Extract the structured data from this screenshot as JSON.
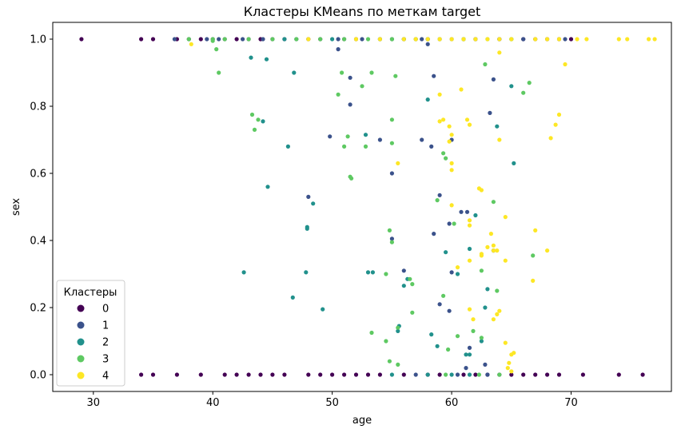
{
  "chart_data": {
    "type": "scatter",
    "title": "Кластеры KMeans по меткам target",
    "xlabel": "age",
    "ylabel": "sex",
    "xlim": [
      26.6,
      78.4
    ],
    "ylim": [
      -0.05,
      1.05
    ],
    "xticks": [
      30,
      40,
      50,
      60,
      70
    ],
    "yticks": [
      0.0,
      0.2,
      0.4,
      0.6,
      0.8,
      1.0
    ],
    "grid": false,
    "legend": {
      "title": "Кластеры",
      "placement": "lower-left",
      "entries": [
        "0",
        "1",
        "2",
        "3",
        "4"
      ]
    },
    "colors": {
      "0": "#440154",
      "1": "#3b528b",
      "2": "#21918c",
      "3": "#5ec962",
      "4": "#fde725"
    },
    "series": [
      {
        "name": "0",
        "points": [
          [
            29,
            1
          ],
          [
            34,
            1
          ],
          [
            35,
            1
          ],
          [
            37,
            1
          ],
          [
            38,
            1
          ],
          [
            39,
            1
          ],
          [
            40,
            1
          ],
          [
            41,
            1
          ],
          [
            42,
            1
          ],
          [
            43,
            1
          ],
          [
            44,
            1
          ],
          [
            45,
            1
          ],
          [
            46,
            1
          ],
          [
            48,
            1
          ],
          [
            49,
            1
          ],
          [
            51,
            1
          ],
          [
            52,
            1
          ],
          [
            54,
            1
          ],
          [
            56,
            1
          ],
          [
            57,
            1
          ],
          [
            58,
            1
          ],
          [
            59,
            1
          ],
          [
            61,
            1
          ],
          [
            62,
            1
          ],
          [
            64,
            1
          ],
          [
            66,
            1
          ],
          [
            67,
            1
          ],
          [
            68,
            1
          ],
          [
            69,
            1
          ],
          [
            70,
            1
          ],
          [
            34,
            0
          ],
          [
            35,
            0
          ],
          [
            37,
            0
          ],
          [
            39,
            0
          ],
          [
            41,
            0
          ],
          [
            42,
            0
          ],
          [
            43,
            0
          ],
          [
            44,
            0
          ],
          [
            45,
            0
          ],
          [
            46,
            0
          ],
          [
            48,
            0
          ],
          [
            49,
            0
          ],
          [
            50,
            0
          ],
          [
            51,
            0
          ],
          [
            52,
            0
          ],
          [
            53,
            0
          ],
          [
            54,
            0
          ],
          [
            56,
            0
          ],
          [
            58,
            0
          ],
          [
            59,
            0
          ],
          [
            61,
            0
          ],
          [
            62,
            0
          ],
          [
            63,
            0
          ],
          [
            64,
            0
          ],
          [
            65,
            0
          ],
          [
            66,
            0
          ],
          [
            67,
            0
          ],
          [
            68,
            0
          ],
          [
            69,
            0
          ],
          [
            71,
            0
          ],
          [
            74,
            0
          ],
          [
            76,
            0
          ]
        ]
      },
      {
        "name": "1",
        "points": [
          [
            36.8,
            1
          ],
          [
            39.5,
            1
          ],
          [
            40.5,
            1
          ],
          [
            42.5,
            1
          ],
          [
            44.2,
            1
          ],
          [
            47,
            1
          ],
          [
            50.5,
            1
          ],
          [
            52.5,
            1
          ],
          [
            55,
            1
          ],
          [
            57.5,
            1
          ],
          [
            60,
            1
          ],
          [
            62,
            1
          ],
          [
            64,
            1
          ],
          [
            66,
            1
          ],
          [
            69.5,
            1
          ],
          [
            50.5,
            0.97
          ],
          [
            58,
            0.985
          ],
          [
            51.5,
            0.885
          ],
          [
            58.5,
            0.89
          ],
          [
            63.5,
            0.88
          ],
          [
            51.5,
            0.805
          ],
          [
            63.2,
            0.78
          ],
          [
            49.8,
            0.71
          ],
          [
            54,
            0.7
          ],
          [
            57.5,
            0.7
          ],
          [
            58.3,
            0.68
          ],
          [
            60,
            0.7
          ],
          [
            55,
            0.6
          ],
          [
            48,
            0.53
          ],
          [
            59,
            0.535
          ],
          [
            60.8,
            0.485
          ],
          [
            61.3,
            0.485
          ],
          [
            59.8,
            0.45
          ],
          [
            60,
            0.305
          ],
          [
            58.5,
            0.42
          ],
          [
            55,
            0.405
          ],
          [
            56,
            0.31
          ],
          [
            63.5,
            0.37
          ],
          [
            62.8,
            0.03
          ],
          [
            59,
            0.21
          ],
          [
            59.8,
            0.19
          ],
          [
            61.5,
            0.08
          ],
          [
            61.2,
            0.02
          ],
          [
            57,
            0.0
          ],
          [
            60.5,
            0.0
          ],
          [
            63,
            0.0
          ]
        ]
      },
      {
        "name": "2",
        "points": [
          [
            43.2,
            0.945
          ],
          [
            44.5,
            0.94
          ],
          [
            46.8,
            0.9
          ],
          [
            44.2,
            0.755
          ],
          [
            46.3,
            0.68
          ],
          [
            52.8,
            0.715
          ],
          [
            44.6,
            0.56
          ],
          [
            48.4,
            0.51
          ],
          [
            47.9,
            0.44
          ],
          [
            47.9,
            0.435
          ],
          [
            42.6,
            0.305
          ],
          [
            47.8,
            0.305
          ],
          [
            53,
            0.305
          ],
          [
            53.4,
            0.305
          ],
          [
            46.7,
            0.23
          ],
          [
            49.2,
            0.195
          ],
          [
            55.6,
            0.145
          ],
          [
            55.5,
            0.13
          ],
          [
            56.3,
            0.285
          ],
          [
            56,
            0.265
          ],
          [
            58.3,
            0.12
          ],
          [
            58.8,
            0.085
          ],
          [
            58,
            0.82
          ],
          [
            61.5,
            0.375
          ],
          [
            60.5,
            0.3
          ],
          [
            59.5,
            0.365
          ],
          [
            62,
            0.475
          ],
          [
            63,
            0.255
          ],
          [
            63.8,
            0.74
          ],
          [
            65,
            0.86
          ],
          [
            65.2,
            0.63
          ],
          [
            62.8,
            0.2
          ],
          [
            61.5,
            0.06
          ],
          [
            62.5,
            0.1
          ],
          [
            61.2,
            0.06
          ],
          [
            55,
            0.0
          ],
          [
            58,
            0.0
          ],
          [
            60,
            0.0
          ],
          [
            61.5,
            0.0
          ],
          [
            46,
            1
          ],
          [
            50,
            1
          ],
          [
            54,
            1
          ],
          [
            56,
            1
          ],
          [
            58,
            1
          ],
          [
            61,
            1
          ],
          [
            65,
            1
          ]
        ]
      },
      {
        "name": "3",
        "points": [
          [
            38,
            1
          ],
          [
            40,
            1
          ],
          [
            41,
            1
          ],
          [
            43,
            1
          ],
          [
            45,
            1
          ],
          [
            47,
            1
          ],
          [
            49,
            1
          ],
          [
            51,
            1
          ],
          [
            53,
            1
          ],
          [
            55,
            1
          ],
          [
            57,
            1
          ],
          [
            59,
            1
          ],
          [
            61,
            1
          ],
          [
            63,
            1
          ],
          [
            65,
            1
          ],
          [
            40,
            0.995
          ],
          [
            40.3,
            0.97
          ],
          [
            40.5,
            0.9
          ],
          [
            50.8,
            0.9
          ],
          [
            53.3,
            0.9
          ],
          [
            55.3,
            0.89
          ],
          [
            52.5,
            0.86
          ],
          [
            50.5,
            0.835
          ],
          [
            43.3,
            0.775
          ],
          [
            43.8,
            0.76
          ],
          [
            43.5,
            0.73
          ],
          [
            51.3,
            0.71
          ],
          [
            55,
            0.76
          ],
          [
            55,
            0.69
          ],
          [
            52.8,
            0.68
          ],
          [
            51,
            0.68
          ],
          [
            59.3,
            0.66
          ],
          [
            59.5,
            0.645
          ],
          [
            51.5,
            0.59
          ],
          [
            51.6,
            0.585
          ],
          [
            54.8,
            0.43
          ],
          [
            55,
            0.395
          ],
          [
            58.8,
            0.52
          ],
          [
            63.5,
            0.515
          ],
          [
            60.2,
            0.45
          ],
          [
            62.5,
            0.31
          ],
          [
            63.8,
            0.25
          ],
          [
            66.8,
            0.355
          ],
          [
            54.5,
            0.3
          ],
          [
            56.5,
            0.285
          ],
          [
            56.7,
            0.27
          ],
          [
            59.3,
            0.235
          ],
          [
            56.7,
            0.185
          ],
          [
            53.3,
            0.125
          ],
          [
            54.5,
            0.1
          ],
          [
            55.5,
            0.14
          ],
          [
            60.5,
            0.115
          ],
          [
            61.8,
            0.13
          ],
          [
            62.5,
            0.11
          ],
          [
            59.7,
            0.075
          ],
          [
            54.8,
            0.04
          ],
          [
            55.5,
            0.03
          ],
          [
            59.5,
            0.0
          ],
          [
            62.3,
            0.0
          ],
          [
            64,
            0.0
          ],
          [
            62.8,
            0.925
          ],
          [
            66.5,
            0.87
          ],
          [
            66,
            0.84
          ]
        ]
      },
      {
        "name": "4",
        "points": [
          [
            38.2,
            0.985
          ],
          [
            48,
            1
          ],
          [
            52,
            1
          ],
          [
            54,
            1
          ],
          [
            56,
            1
          ],
          [
            57,
            1
          ],
          [
            58,
            1
          ],
          [
            59,
            1
          ],
          [
            60,
            1
          ],
          [
            61,
            1
          ],
          [
            62,
            1
          ],
          [
            63,
            1
          ],
          [
            64,
            1
          ],
          [
            65,
            1
          ],
          [
            67,
            1
          ],
          [
            68,
            1
          ],
          [
            69,
            1
          ],
          [
            70.5,
            1
          ],
          [
            71.3,
            1
          ],
          [
            74,
            1
          ],
          [
            74.7,
            1
          ],
          [
            76.5,
            1
          ],
          [
            77,
            1
          ],
          [
            64,
            0.96
          ],
          [
            69.5,
            0.925
          ],
          [
            60.8,
            0.85
          ],
          [
            59,
            0.835
          ],
          [
            69,
            0.775
          ],
          [
            68.7,
            0.745
          ],
          [
            59,
            0.755
          ],
          [
            59.3,
            0.76
          ],
          [
            59.8,
            0.74
          ],
          [
            61.3,
            0.76
          ],
          [
            61.5,
            0.745
          ],
          [
            60,
            0.715
          ],
          [
            64,
            0.7
          ],
          [
            68.3,
            0.705
          ],
          [
            59.8,
            0.695
          ],
          [
            55.5,
            0.63
          ],
          [
            60,
            0.63
          ],
          [
            60,
            0.61
          ],
          [
            62.3,
            0.555
          ],
          [
            62.5,
            0.55
          ],
          [
            60,
            0.505
          ],
          [
            64.5,
            0.47
          ],
          [
            61.5,
            0.46
          ],
          [
            61.5,
            0.445
          ],
          [
            67,
            0.43
          ],
          [
            63.3,
            0.42
          ],
          [
            63,
            0.38
          ],
          [
            63.5,
            0.385
          ],
          [
            63.5,
            0.37
          ],
          [
            63.8,
            0.37
          ],
          [
            62.5,
            0.36
          ],
          [
            61.5,
            0.34
          ],
          [
            64.5,
            0.34
          ],
          [
            62.5,
            0.355
          ],
          [
            68,
            0.37
          ],
          [
            60.5,
            0.32
          ],
          [
            66.8,
            0.28
          ],
          [
            61.5,
            0.195
          ],
          [
            64,
            0.19
          ],
          [
            63.8,
            0.18
          ],
          [
            61.8,
            0.165
          ],
          [
            63.5,
            0.165
          ],
          [
            64.5,
            0.095
          ],
          [
            65,
            0.06
          ],
          [
            65.2,
            0.065
          ],
          [
            64.8,
            0.035
          ],
          [
            64.7,
            0.02
          ],
          [
            65,
            0.01
          ]
        ]
      }
    ]
  }
}
